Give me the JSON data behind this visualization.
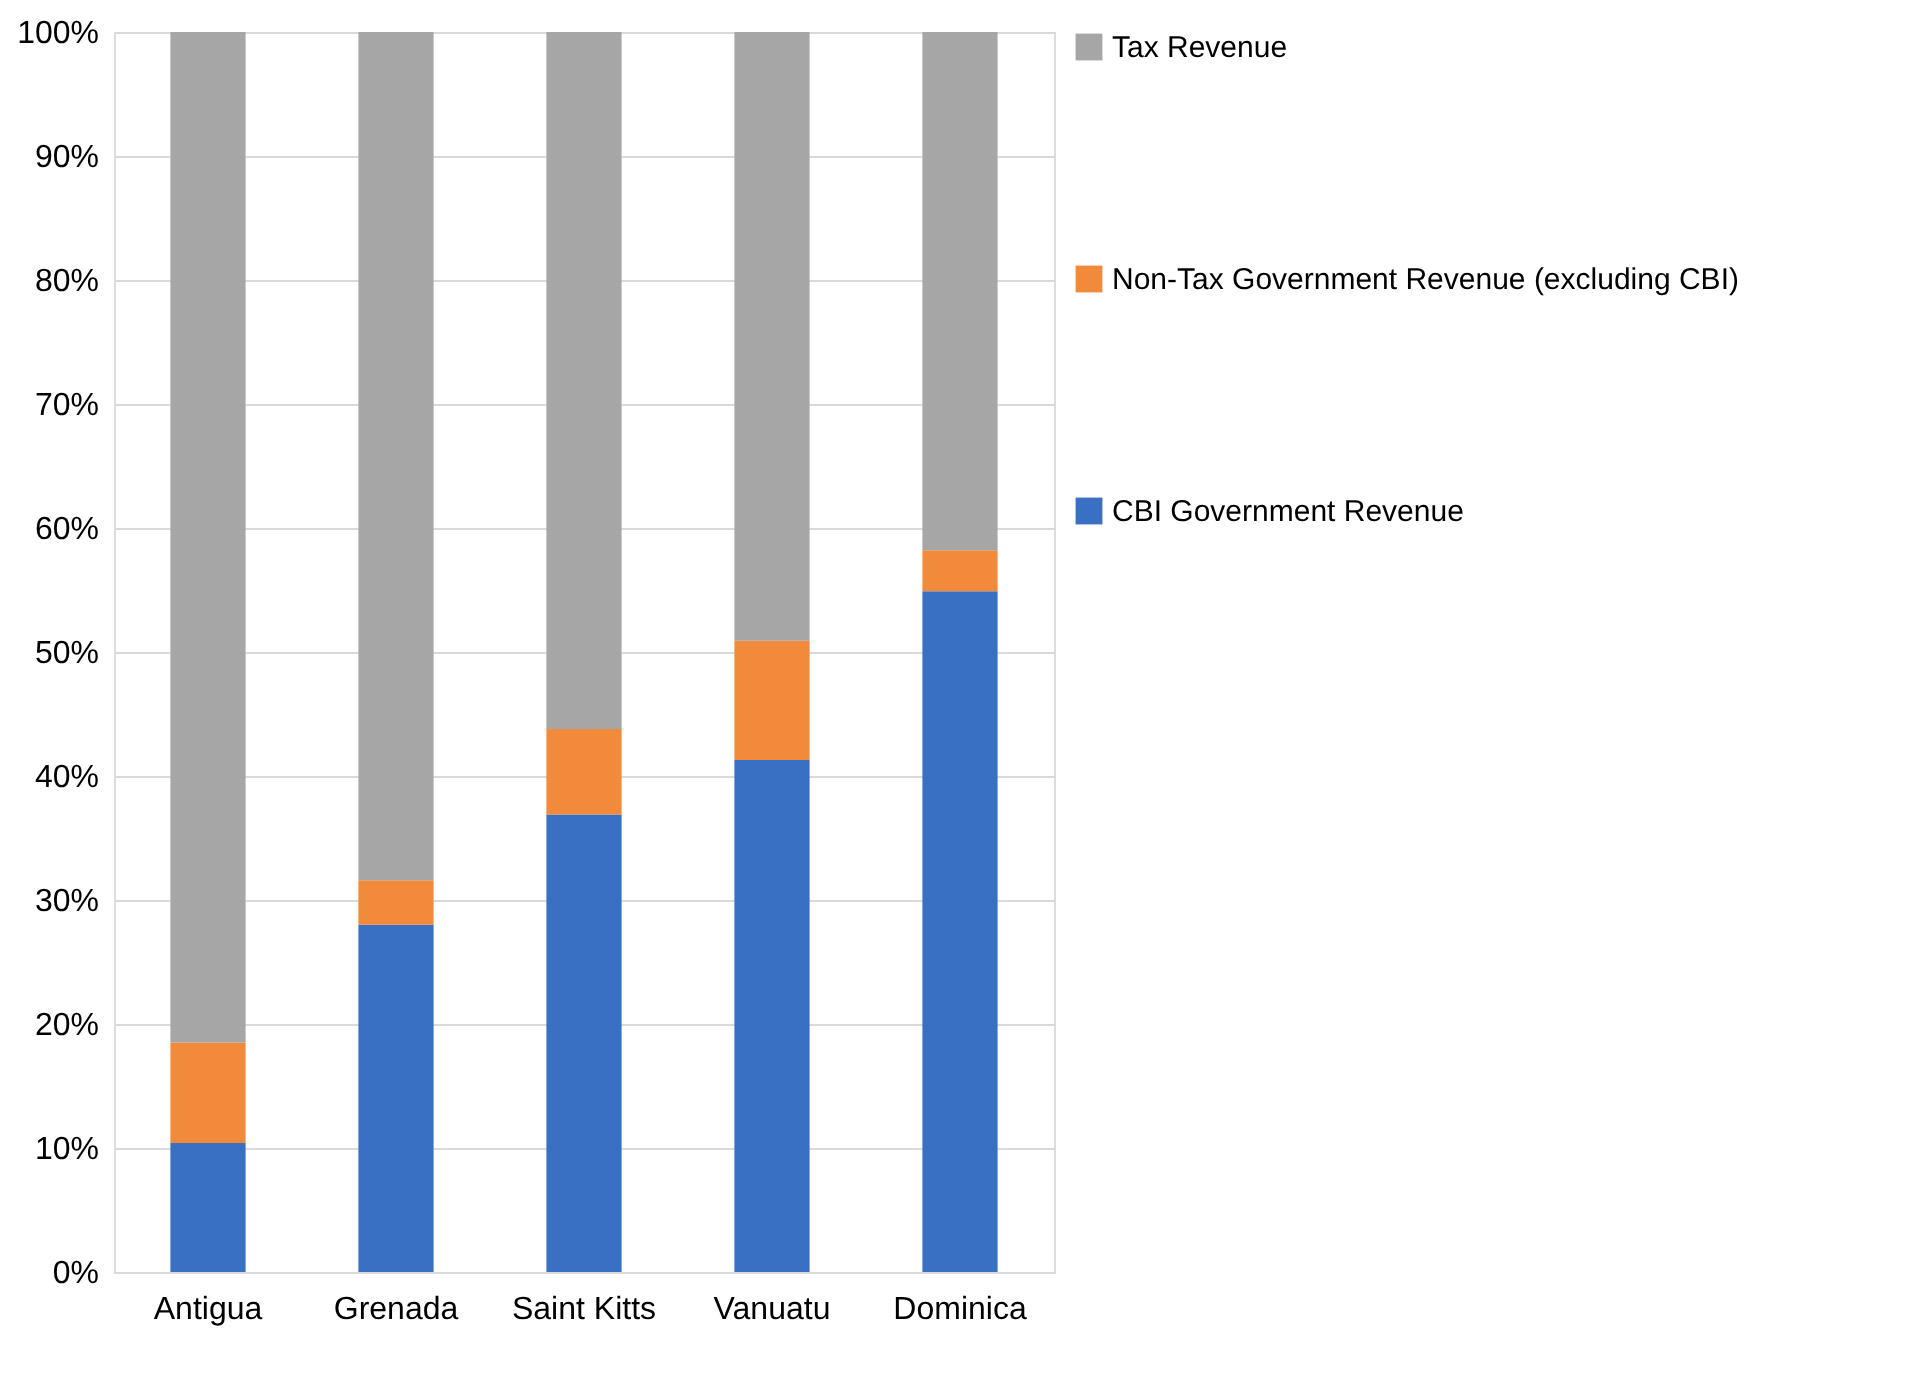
{
  "chart_data": {
    "type": "bar",
    "stacked": true,
    "categories": [
      "Antigua",
      "Grenada",
      "Saint Kitts",
      "Vanuatu",
      "Dominica"
    ],
    "series": [
      {
        "name": "CBI Government Revenue",
        "color": "#3a70c4",
        "values": [
          10.4,
          28.0,
          36.9,
          41.3,
          54.9
        ]
      },
      {
        "name": "Non-Tax Government Revenue (excluding CBI)",
        "color": "#f28a3c",
        "values": [
          8.1,
          3.6,
          6.9,
          9.6,
          3.3
        ]
      },
      {
        "name": "Tax Revenue",
        "color": "#a6a6a6",
        "values": [
          81.5,
          68.4,
          56.2,
          49.1,
          41.8
        ]
      }
    ],
    "ylim": [
      0,
      100
    ],
    "yticks": [
      {
        "value": 0,
        "label": "0%"
      },
      {
        "value": 10,
        "label": "10%"
      },
      {
        "value": 20,
        "label": "20%"
      },
      {
        "value": 30,
        "label": "30%"
      },
      {
        "value": 40,
        "label": "40%"
      },
      {
        "value": 50,
        "label": "50%"
      },
      {
        "value": 60,
        "label": "60%"
      },
      {
        "value": 70,
        "label": "70%"
      },
      {
        "value": 80,
        "label": "80%"
      },
      {
        "value": 90,
        "label": "90%"
      },
      {
        "value": 100,
        "label": "100%"
      }
    ],
    "grid": "y",
    "legend": "right"
  }
}
